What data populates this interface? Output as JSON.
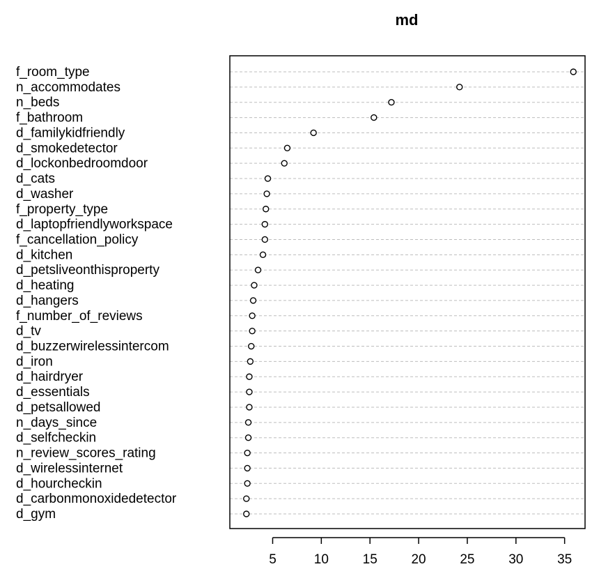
{
  "chart_data": {
    "type": "scatter",
    "title": "md",
    "xlabel": "",
    "ylabel": "",
    "xlim": [
      0.6,
      37.1
    ],
    "xticks": [
      5,
      10,
      15,
      20,
      25,
      30,
      35
    ],
    "grid": true,
    "categories": [
      "f_room_type",
      "n_accommodates",
      "n_beds",
      "f_bathroom",
      "d_familykidfriendly",
      "d_smokedetector",
      "d_lockonbedroomdoor",
      "d_cats",
      "d_washer",
      "f_property_type",
      "d_laptopfriendlyworkspace",
      "f_cancellation_policy",
      "d_kitchen",
      "d_petsliveonthisproperty",
      "d_heating",
      "d_hangers",
      "f_number_of_reviews",
      "d_tv",
      "d_buzzerwirelessintercom",
      "d_iron",
      "d_hairdryer",
      "d_essentials",
      "d_petsallowed",
      "n_days_since",
      "d_selfcheckin",
      "n_review_scores_rating",
      "d_wirelessinternet",
      "d_hourcheckin",
      "d_carbonmonoxidedetector",
      "d_gym"
    ],
    "values": [
      35.9,
      24.2,
      17.2,
      15.4,
      9.2,
      6.5,
      6.2,
      4.5,
      4.4,
      4.3,
      4.2,
      4.2,
      4.0,
      3.5,
      3.1,
      3.0,
      2.9,
      2.9,
      2.8,
      2.7,
      2.6,
      2.6,
      2.6,
      2.5,
      2.5,
      2.4,
      2.4,
      2.4,
      2.3,
      2.3
    ]
  }
}
